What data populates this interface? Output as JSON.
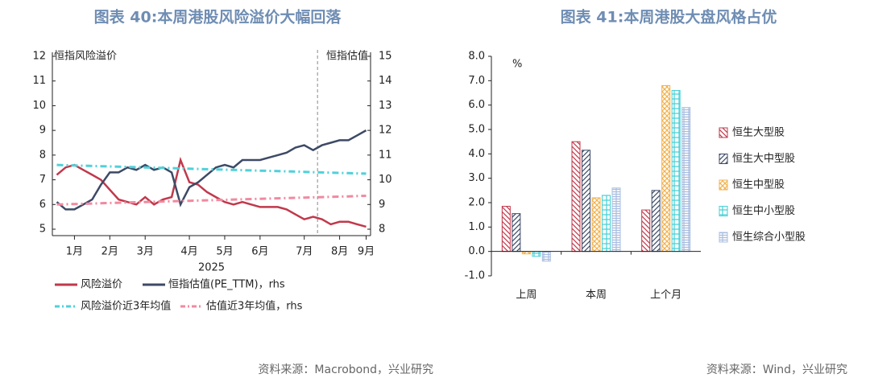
{
  "chart_data": [
    {
      "type": "line",
      "title": "图表 40:本周港股风险溢价大幅回落",
      "y_label": "恒指风险溢价",
      "y2_label": "恒指估值",
      "x_label": "2025",
      "source": "资料来源：Macrobond，兴业研究",
      "categories": [
        null,
        null,
        "1月",
        null,
        null,
        null,
        "2月",
        null,
        null,
        null,
        "3月",
        null,
        null,
        null,
        null,
        "4月",
        null,
        null,
        null,
        "5月",
        null,
        null,
        null,
        "6月",
        null,
        null,
        null,
        null,
        "7月",
        null,
        null,
        null,
        "8月",
        null,
        null,
        "9月"
      ],
      "ylim": [
        5,
        12
      ],
      "yticks": [
        5,
        6,
        7,
        8,
        9,
        10,
        11,
        12
      ],
      "y2lim": [
        8,
        15
      ],
      "y2ticks": [
        8,
        9,
        10,
        11,
        12,
        13,
        14,
        15
      ],
      "series": [
        {
          "name": "风险溢价",
          "color": "#c0394b",
          "style": "solid",
          "values": [
            7.2,
            7.5,
            7.6,
            7.4,
            7.2,
            7.0,
            6.6,
            6.2,
            6.1,
            6.0,
            6.3,
            6.0,
            6.2,
            6.3,
            7.8,
            6.9,
            6.8,
            6.5,
            6.3,
            6.1,
            6.0,
            6.1,
            6.0,
            5.9,
            5.9,
            5.9,
            5.8,
            5.6,
            5.4,
            5.5,
            5.4,
            5.2,
            5.3,
            5.3,
            5.2,
            5.1
          ]
        },
        {
          "name": "恒指估值(PE_TTM)，rhs",
          "color": "#3d4a66",
          "style": "solid",
          "axis": "y2",
          "values": [
            9.1,
            8.8,
            8.8,
            9.0,
            9.2,
            9.8,
            10.3,
            10.3,
            10.5,
            10.4,
            10.6,
            10.4,
            10.5,
            10.3,
            9.0,
            9.7,
            9.9,
            10.2,
            10.5,
            10.6,
            10.5,
            10.8,
            10.8,
            10.8,
            10.9,
            11.0,
            11.1,
            11.3,
            11.4,
            11.2,
            11.4,
            11.5,
            11.6,
            11.6,
            11.8,
            12.0
          ]
        },
        {
          "name": "风险溢价近3年均值",
          "color": "#4fd1d9",
          "style": "dash-dot",
          "values": [
            7.6,
            7.59,
            7.58,
            7.57,
            7.56,
            7.55,
            7.54,
            7.53,
            7.52,
            7.51,
            7.5,
            7.49,
            7.48,
            7.47,
            7.46,
            7.45,
            7.44,
            7.43,
            7.42,
            7.41,
            7.4,
            7.39,
            7.38,
            7.37,
            7.36,
            7.35,
            7.34,
            7.33,
            7.32,
            7.31,
            7.3,
            7.29,
            7.28,
            7.27,
            7.26,
            7.25
          ]
        },
        {
          "name": "估值近3年均值，rhs",
          "color": "#f08aa0",
          "style": "dash-dot",
          "axis": "y2",
          "values": [
            9.0,
            9.01,
            9.02,
            9.03,
            9.04,
            9.05,
            9.06,
            9.07,
            9.08,
            9.09,
            9.1,
            9.11,
            9.12,
            9.13,
            9.14,
            9.15,
            9.16,
            9.17,
            9.18,
            9.19,
            9.2,
            9.21,
            9.22,
            9.23,
            9.24,
            9.25,
            9.26,
            9.27,
            9.28,
            9.29,
            9.3,
            9.31,
            9.32,
            9.33,
            9.34,
            9.35
          ]
        }
      ]
    },
    {
      "type": "bar",
      "title": "图表 41:本周港股大盘风格占优",
      "y_label": "%",
      "source": "资料来源：Wind，兴业研究",
      "categories": [
        "上周",
        "本周",
        "上个月"
      ],
      "ylim": [
        -1,
        8
      ],
      "yticks": [
        {
          "value": -1,
          "label": "-1.0"
        },
        {
          "value": 0,
          "label": "0.0"
        },
        {
          "value": 1,
          "label": "1.0"
        },
        {
          "value": 2,
          "label": "2.0"
        },
        {
          "value": 3,
          "label": "3.0"
        },
        {
          "value": 4,
          "label": "4.0"
        },
        {
          "value": 5,
          "label": "5.0"
        },
        {
          "value": 6,
          "label": "6.0"
        },
        {
          "value": 7,
          "label": "7.0"
        },
        {
          "value": 8,
          "label": "8.0"
        }
      ],
      "series": [
        {
          "name": "恒生大型股",
          "color": "#c0394b",
          "hatch": "back-diagonal",
          "values": [
            1.85,
            4.5,
            1.7
          ]
        },
        {
          "name": "恒生大中型股",
          "color": "#3d4a66",
          "hatch": "diagonal",
          "values": [
            1.55,
            4.15,
            2.5
          ]
        },
        {
          "name": "恒生中型股",
          "color": "#f2b24c",
          "hatch": "cross-diagonal",
          "values": [
            -0.1,
            2.2,
            6.8
          ]
        },
        {
          "name": "恒生中小型股",
          "color": "#47d0d6",
          "hatch": "grid",
          "values": [
            -0.2,
            2.3,
            6.6
          ]
        },
        {
          "name": "恒生综合小型股",
          "color": "#a9bde0",
          "hatch": "horizontal",
          "values": [
            -0.4,
            2.6,
            5.9
          ]
        }
      ]
    }
  ]
}
